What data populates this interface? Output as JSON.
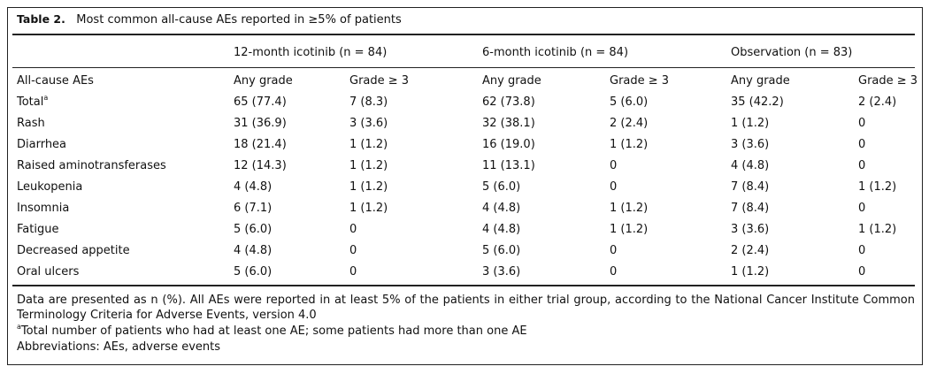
{
  "table": {
    "label": "Table 2.",
    "title": "Most common all-cause AEs reported in ≥5% of patients",
    "groups": [
      "12-month icotinib (n = 84)",
      "6-month icotinib (n = 84)",
      "Observation (n = 83)"
    ],
    "columns": [
      "All-cause AEs",
      "Any grade",
      "Grade ≥ 3",
      "Any grade",
      "Grade ≥ 3",
      "Any grade",
      "Grade ≥ 3"
    ],
    "rows": [
      [
        {
          "text": "Total",
          "sup": "a"
        },
        "65 (77.4)",
        "7 (8.3)",
        "62 (73.8)",
        "5 (6.0)",
        "35 (42.2)",
        "2 (2.4)"
      ],
      [
        "Rash",
        "31 (36.9)",
        "3 (3.6)",
        "32 (38.1)",
        "2 (2.4)",
        "1 (1.2)",
        "0"
      ],
      [
        "Diarrhea",
        "18 (21.4)",
        "1 (1.2)",
        "16 (19.0)",
        "1 (1.2)",
        "3 (3.6)",
        "0"
      ],
      [
        "Raised aminotransferases",
        "12 (14.3)",
        "1 (1.2)",
        "11 (13.1)",
        "0",
        "4 (4.8)",
        "0"
      ],
      [
        "Leukopenia",
        "4 (4.8)",
        "1 (1.2)",
        "5 (6.0)",
        "0",
        "7 (8.4)",
        "1 (1.2)"
      ],
      [
        "Insomnia",
        "6 (7.1)",
        "1 (1.2)",
        "4 (4.8)",
        "1 (1.2)",
        "7 (8.4)",
        "0"
      ],
      [
        "Fatigue",
        "5 (6.0)",
        "0",
        "4 (4.8)",
        "1 (1.2)",
        "3 (3.6)",
        "1 (1.2)"
      ],
      [
        "Decreased appetite",
        "4 (4.8)",
        "0",
        "5 (6.0)",
        "0",
        "2 (2.4)",
        "0"
      ],
      [
        "Oral ulcers",
        "5 (6.0)",
        "0",
        "3 (3.6)",
        "0",
        "1 (1.2)",
        "0"
      ]
    ],
    "notes": [
      {
        "text": "Data are presented as n (%). All AEs were reported in at least 5% of the patients in either trial group, according to the National Cancer Institute Common Terminology Criteria for Adverse Events, version 4.0"
      },
      {
        "sup": "a",
        "text": "Total number of patients who had at least one AE; some patients had more than one AE"
      },
      {
        "text": "Abbreviations: AEs, adverse events"
      }
    ]
  }
}
